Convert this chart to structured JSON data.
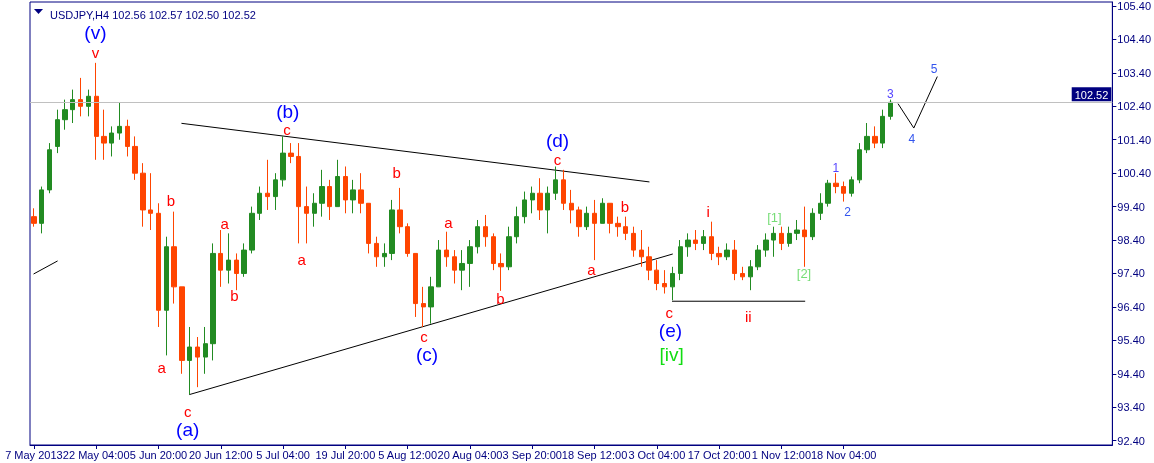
{
  "chart_data": {
    "type": "candlestick",
    "title": "USDJPY,H4 102.56 102.57 102.50 102.52",
    "categories": [
      "7 May 2013",
      null,
      null,
      null,
      null,
      null,
      null,
      null,
      "22 May 04:00",
      null,
      null,
      null,
      null,
      null,
      null,
      null,
      "5 Jun 20:00",
      null,
      null,
      null,
      null,
      null,
      null,
      null,
      "20 Jun 12:00",
      null,
      null,
      null,
      null,
      null,
      null,
      null,
      "5 Jul 04:00",
      null,
      null,
      null,
      null,
      null,
      null,
      null,
      "19 Jul 20:00",
      null,
      null,
      null,
      null,
      null,
      null,
      null,
      "5 Aug 12:00",
      null,
      null,
      null,
      null,
      null,
      null,
      null,
      "20 Aug 04:00",
      null,
      null,
      null,
      null,
      null,
      null,
      null,
      "3 Sep 20:00",
      null,
      null,
      null,
      null,
      null,
      null,
      null,
      "18 Sep 12:00",
      null,
      null,
      null,
      null,
      null,
      null,
      null,
      "3 Oct 04:00",
      null,
      null,
      null,
      null,
      null,
      null,
      null,
      "17 Oct 20:00",
      null,
      null,
      null,
      null,
      null,
      null,
      null,
      "1 Nov 12:00",
      null,
      null,
      null,
      null,
      null,
      null,
      null,
      "18 Nov 04:00",
      null,
      null,
      null,
      null,
      null,
      null,
      null,
      null,
      null,
      null,
      null,
      null,
      null,
      null,
      null,
      null,
      null,
      null,
      null,
      null,
      null,
      null,
      null,
      null,
      null,
      null,
      null,
      null,
      null,
      null,
      null,
      null,
      null,
      null
    ],
    "ylim": [
      92.27,
      105.52
    ],
    "yticks": [
      {
        "value": 92.4,
        "label": "92.40"
      },
      {
        "value": 93.4,
        "label": "93.40"
      },
      {
        "value": 94.4,
        "label": "94.40"
      },
      {
        "value": 95.4,
        "label": "95.40"
      },
      {
        "value": 96.4,
        "label": "96.40"
      },
      {
        "value": 97.4,
        "label": "97.40"
      },
      {
        "value": 98.4,
        "label": "98.40"
      },
      {
        "value": 99.4,
        "label": "99.40"
      },
      {
        "value": 100.4,
        "label": "100.40"
      },
      {
        "value": 101.4,
        "label": "101.40"
      },
      {
        "value": 102.4,
        "label": "102.40"
      },
      {
        "value": 103.4,
        "label": "103.40"
      },
      {
        "value": 104.4,
        "label": "104.40"
      },
      {
        "value": 105.4,
        "label": "105.40"
      }
    ],
    "ref_lines": [
      {
        "axis": "y",
        "value": 102.52,
        "label": "102.52",
        "color": "#c0c0c0"
      }
    ],
    "annotations": [
      "(v)",
      "v",
      "a",
      "b",
      "c",
      "(a)",
      "a",
      "b",
      "(b)",
      "c",
      "a",
      "b",
      "c",
      "(c)",
      "a",
      "b",
      "(d)",
      "c",
      "a",
      "b",
      "c",
      "(e)",
      "[iv]",
      "i",
      "ii",
      "[1]",
      "[2]",
      "1",
      "2",
      "3",
      "4",
      "5"
    ],
    "series": [
      {
        "ohlc": [
          [
            99.1,
            99.35,
            98.8,
            98.9
          ],
          [
            98.9,
            100.0,
            98.6,
            99.9
          ],
          [
            99.9,
            101.3,
            99.8,
            101.1
          ],
          [
            101.2,
            102.3,
            101.0,
            102.0
          ],
          [
            102.0,
            102.6,
            101.7,
            102.3
          ],
          [
            102.3,
            102.9,
            101.9,
            102.6
          ],
          [
            102.6,
            103.25,
            102.1,
            102.4
          ],
          [
            102.4,
            102.9,
            102.1,
            102.7
          ],
          [
            102.7,
            103.7,
            100.8,
            101.5
          ],
          [
            101.5,
            102.3,
            100.8,
            101.3
          ],
          [
            101.3,
            101.8,
            100.9,
            101.6
          ],
          [
            101.6,
            102.5,
            101.4,
            101.8
          ],
          [
            101.8,
            102.0,
            100.9,
            101.2
          ],
          [
            101.2,
            101.5,
            100.2,
            100.4
          ],
          [
            100.4,
            100.7,
            98.8,
            99.3
          ],
          [
            99.3,
            100.4,
            98.7,
            99.2
          ],
          [
            99.2,
            99.5,
            95.8,
            96.3
          ],
          [
            96.3,
            98.5,
            94.95,
            98.2
          ],
          [
            98.2,
            99.25,
            96.5,
            97.0
          ],
          [
            97.0,
            97.0,
            94.4,
            94.8
          ],
          [
            94.8,
            95.8,
            93.78,
            95.2
          ],
          [
            95.2,
            95.5,
            94.0,
            94.9
          ],
          [
            94.9,
            95.8,
            94.4,
            95.3
          ],
          [
            95.3,
            98.3,
            94.8,
            98.0
          ],
          [
            98.0,
            98.7,
            97.0,
            97.5
          ],
          [
            97.5,
            98.6,
            97.1,
            97.8
          ],
          [
            97.8,
            98.0,
            96.9,
            97.4
          ],
          [
            97.4,
            98.3,
            97.3,
            98.1
          ],
          [
            98.1,
            99.4,
            98.0,
            99.2
          ],
          [
            99.2,
            100.0,
            99.0,
            99.8
          ],
          [
            99.8,
            100.8,
            99.3,
            99.7
          ],
          [
            99.7,
            100.4,
            99.3,
            100.2
          ],
          [
            100.2,
            101.5,
            100.0,
            101.0
          ],
          [
            101.0,
            101.3,
            100.7,
            100.9
          ],
          [
            100.9,
            101.3,
            98.3,
            99.4
          ],
          [
            99.4,
            100.0,
            98.3,
            99.2
          ],
          [
            99.2,
            99.8,
            98.8,
            99.5
          ],
          [
            99.5,
            100.5,
            99.1,
            100.0
          ],
          [
            100.0,
            100.2,
            99.0,
            99.4
          ],
          [
            99.4,
            100.8,
            99.4,
            100.3
          ],
          [
            100.3,
            100.6,
            99.2,
            99.6
          ],
          [
            99.6,
            100.2,
            99.2,
            99.9
          ],
          [
            99.9,
            100.4,
            99.2,
            99.5
          ],
          [
            99.5,
            99.5,
            98.0,
            98.3
          ],
          [
            98.3,
            98.5,
            97.6,
            97.9
          ],
          [
            97.9,
            98.3,
            97.6,
            98.0
          ],
          [
            98.0,
            99.6,
            97.8,
            99.3
          ],
          [
            99.3,
            99.96,
            98.6,
            98.8
          ],
          [
            98.8,
            98.9,
            97.9,
            98.0
          ],
          [
            98.0,
            98.0,
            96.1,
            96.5
          ],
          [
            96.5,
            97.0,
            95.8,
            96.4
          ],
          [
            96.4,
            97.3,
            95.9,
            97.0
          ],
          [
            97.0,
            98.4,
            97.0,
            98.1
          ],
          [
            98.1,
            98.65,
            97.6,
            97.9
          ],
          [
            97.9,
            98.1,
            97.1,
            97.5
          ],
          [
            97.5,
            98.1,
            96.9,
            97.7
          ],
          [
            97.7,
            98.4,
            97.0,
            98.2
          ],
          [
            98.2,
            99.0,
            98.0,
            98.8
          ],
          [
            98.8,
            99.15,
            98.2,
            98.5
          ],
          [
            98.5,
            98.6,
            97.5,
            97.7
          ],
          [
            97.7,
            98.0,
            96.88,
            97.6
          ],
          [
            97.6,
            98.8,
            97.5,
            98.5
          ],
          [
            98.5,
            99.4,
            98.3,
            99.1
          ],
          [
            99.1,
            99.85,
            98.9,
            99.6
          ],
          [
            99.6,
            100.0,
            99.2,
            99.8
          ],
          [
            99.8,
            100.25,
            99.0,
            99.3
          ],
          [
            99.3,
            100.0,
            98.6,
            99.8
          ],
          [
            99.8,
            100.6,
            99.6,
            100.2
          ],
          [
            100.2,
            100.5,
            99.3,
            99.5
          ],
          [
            99.5,
            99.9,
            98.9,
            99.3
          ],
          [
            99.3,
            99.4,
            98.5,
            98.8
          ],
          [
            98.8,
            99.4,
            98.7,
            99.2
          ],
          [
            99.2,
            99.6,
            97.8,
            98.9
          ],
          [
            98.9,
            99.65,
            98.9,
            99.5
          ],
          [
            99.5,
            99.5,
            98.6,
            98.9
          ],
          [
            98.9,
            99.1,
            98.5,
            98.8
          ],
          [
            98.8,
            99.1,
            98.4,
            98.6
          ],
          [
            98.6,
            98.8,
            97.9,
            98.1
          ],
          [
            98.1,
            98.7,
            97.6,
            97.9
          ],
          [
            97.9,
            98.2,
            97.2,
            97.5
          ],
          [
            97.5,
            97.8,
            96.9,
            97.1
          ],
          [
            97.1,
            97.5,
            96.8,
            97.0
          ],
          [
            97.0,
            97.6,
            96.6,
            97.4
          ],
          [
            97.4,
            98.4,
            97.2,
            98.2
          ],
          [
            98.2,
            98.6,
            97.9,
            98.4
          ],
          [
            98.4,
            98.7,
            98.1,
            98.3
          ],
          [
            98.3,
            98.7,
            98.1,
            98.5
          ],
          [
            98.5,
            98.95,
            97.8,
            98.0
          ],
          [
            98.0,
            98.2,
            97.65,
            97.9
          ],
          [
            97.9,
            98.3,
            97.8,
            98.1
          ],
          [
            98.1,
            98.4,
            97.2,
            97.4
          ],
          [
            97.4,
            97.6,
            97.2,
            97.3
          ],
          [
            97.3,
            97.8,
            96.9,
            97.6
          ],
          [
            97.6,
            98.25,
            97.5,
            98.1
          ],
          [
            98.1,
            98.6,
            97.9,
            98.4
          ],
          [
            98.4,
            98.8,
            97.9,
            98.6
          ],
          [
            98.6,
            98.8,
            98.1,
            98.3
          ],
          [
            98.3,
            98.8,
            98.2,
            98.6
          ],
          [
            98.6,
            99.0,
            98.4,
            98.7
          ],
          [
            98.7,
            99.4,
            97.6,
            98.5
          ],
          [
            98.5,
            99.35,
            98.4,
            99.2
          ],
          [
            99.2,
            99.8,
            99.0,
            99.5
          ],
          [
            99.5,
            100.2,
            99.4,
            100.1
          ],
          [
            100.1,
            100.4,
            99.8,
            100.0
          ],
          [
            100.0,
            100.15,
            99.55,
            99.8
          ],
          [
            99.8,
            100.3,
            99.7,
            100.2
          ],
          [
            100.2,
            101.3,
            100.1,
            101.1
          ],
          [
            101.1,
            101.9,
            101.0,
            101.5
          ],
          [
            101.5,
            101.8,
            101.15,
            101.3
          ],
          [
            101.3,
            102.3,
            101.15,
            102.1
          ],
          [
            102.1,
            102.6,
            102.0,
            102.52
          ],
          null,
          null,
          null,
          null,
          null,
          null,
          null,
          null,
          null,
          null,
          null,
          null,
          null,
          null,
          null,
          null,
          null,
          null,
          null,
          null,
          null,
          null,
          null,
          null,
          null,
          null,
          null,
          null
        ],
        "colors": [
          "#ff4500",
          "#228b22",
          "#228b22",
          "#228b22",
          "#228b22",
          "#228b22",
          "#ff4500",
          "#228b22",
          "#ff4500",
          "#ff4500",
          "#228b22",
          "#228b22",
          "#ff4500",
          "#ff4500",
          "#ff4500",
          "#ff4500",
          "#ff4500",
          "#228b22",
          "#ff4500",
          "#ff4500",
          "#228b22",
          "#ff4500",
          "#228b22",
          "#228b22",
          "#ff4500",
          "#228b22",
          "#ff4500",
          "#228b22",
          "#228b22",
          "#228b22",
          "#ff4500",
          "#228b22",
          "#228b22",
          "#ff4500",
          "#ff4500",
          "#ff4500",
          "#228b22",
          "#228b22",
          "#ff4500",
          "#228b22",
          "#ff4500",
          "#228b22",
          "#ff4500",
          "#ff4500",
          "#ff4500",
          "#228b22",
          "#228b22",
          "#ff4500",
          "#ff4500",
          "#ff4500",
          "#ff4500",
          "#228b22",
          "#228b22",
          "#ff4500",
          "#ff4500",
          "#228b22",
          "#228b22",
          "#228b22",
          "#ff4500",
          "#ff4500",
          "#ff4500",
          "#228b22",
          "#228b22",
          "#228b22",
          "#228b22",
          "#ff4500",
          "#228b22",
          "#228b22",
          "#ff4500",
          "#ff4500",
          "#ff4500",
          "#228b22",
          "#ff4500",
          "#228b22",
          "#ff4500",
          "#ff4500",
          "#ff4500",
          "#ff4500",
          "#ff4500",
          "#ff4500",
          "#ff4500",
          "#ff4500",
          "#228b22",
          "#228b22",
          "#228b22",
          "#ff4500",
          "#228b22",
          "#ff4500",
          "#ff4500",
          "#228b22",
          "#ff4500",
          "#ff4500",
          "#228b22",
          "#228b22",
          "#228b22",
          "#228b22",
          "#ff4500",
          "#228b22",
          "#228b22",
          "#ff4500",
          "#228b22",
          "#228b22",
          "#228b22",
          "#ff4500",
          "#ff4500",
          "#228b22",
          "#228b22",
          "#228b22",
          "#ff4500",
          "#228b22",
          "#228b22",
          null,
          null,
          null,
          null,
          null,
          null,
          null,
          null,
          null,
          null,
          null,
          null,
          null,
          null,
          null,
          null,
          null,
          null,
          null,
          null,
          null,
          null,
          null,
          null,
          null,
          null,
          null,
          null
        ]
      },
      {
        "type": "line",
        "color": "#000000",
        "values": [
          null,
          null,
          null,
          null,
          null,
          null,
          null,
          null,
          null,
          null,
          null,
          null,
          null,
          null,
          null,
          null,
          null,
          null,
          null,
          101.89,
          null,
          null,
          null,
          null,
          null,
          null,
          null,
          null,
          null,
          null,
          null,
          null,
          null,
          null,
          null,
          null,
          null,
          null,
          null,
          null,
          null,
          null,
          null,
          null,
          null,
          null,
          null,
          null,
          null,
          null,
          null,
          null,
          null,
          null,
          null,
          null,
          null,
          null,
          null,
          null,
          null,
          null,
          null,
          null,
          null,
          null,
          null,
          null,
          null,
          null,
          null,
          null,
          null,
          null,
          null,
          null,
          null,
          null,
          null,
          100.14,
          null,
          null,
          null,
          null,
          null,
          null,
          null,
          null,
          null,
          null,
          null,
          null,
          null,
          null,
          null,
          null,
          null,
          null,
          null,
          null,
          null,
          null,
          null,
          null,
          null,
          null,
          null,
          null,
          null,
          null,
          null,
          null,
          null,
          null,
          null,
          null,
          null,
          null,
          null,
          null,
          null,
          null,
          null,
          null,
          null,
          null,
          null,
          null,
          null,
          null,
          null,
          null,
          null,
          null,
          null,
          null,
          null,
          null,
          null
        ]
      },
      {
        "type": "line",
        "color": "#000000",
        "values": [
          null,
          null,
          null,
          null,
          null,
          null,
          null,
          null,
          null,
          null,
          null,
          null,
          null,
          null,
          null,
          null,
          null,
          null,
          null,
          null,
          93.78,
          null,
          null,
          null,
          null,
          null,
          null,
          null,
          null,
          null,
          null,
          null,
          null,
          null,
          null,
          null,
          null,
          null,
          null,
          null,
          null,
          null,
          null,
          null,
          null,
          null,
          null,
          null,
          null,
          null,
          null,
          null,
          null,
          null,
          null,
          null,
          null,
          null,
          null,
          null,
          null,
          null,
          null,
          null,
          null,
          null,
          null,
          null,
          null,
          null,
          null,
          null,
          null,
          null,
          null,
          null,
          null,
          null,
          null,
          null,
          null,
          null,
          97.98,
          null,
          null,
          null,
          null,
          null,
          null,
          null,
          null,
          null,
          null,
          null,
          null,
          null,
          null,
          null,
          null,
          null,
          null,
          null,
          null,
          null,
          null,
          null,
          null,
          null,
          null,
          null,
          null,
          null,
          null,
          null,
          null,
          null,
          null,
          null,
          null,
          null,
          null,
          null,
          null,
          null,
          null,
          null,
          null,
          null,
          null,
          null,
          null,
          null,
          null,
          null,
          null,
          null,
          null,
          null,
          null
        ]
      },
      {
        "type": "line",
        "color": "#000000",
        "values": [
          97.39,
          null,
          null,
          97.77,
          null,
          null,
          null,
          null,
          null,
          null,
          null,
          null,
          null,
          null,
          null,
          null,
          null,
          null,
          null,
          null,
          null,
          null,
          null,
          null,
          null,
          null,
          null,
          null,
          null,
          null,
          null,
          null,
          null,
          null,
          null,
          null,
          null,
          null,
          null,
          null,
          null,
          null,
          null,
          null,
          null,
          null,
          null,
          null,
          null,
          null,
          null,
          null,
          null,
          null,
          null,
          null,
          null,
          null,
          null,
          null,
          null,
          null,
          null,
          null,
          null,
          null,
          null,
          null,
          null,
          null,
          null,
          null,
          null,
          null,
          null,
          null,
          null,
          null,
          null,
          null,
          null,
          null,
          null,
          null,
          null,
          null,
          null,
          null,
          null,
          null,
          null,
          null,
          null,
          null,
          null,
          null,
          null,
          null,
          null,
          null,
          null,
          null,
          null,
          null,
          null,
          null,
          null,
          null,
          null,
          null,
          null,
          null,
          null,
          null,
          null,
          null,
          null,
          null,
          null,
          null,
          null,
          null,
          null,
          null,
          null,
          null,
          null,
          null,
          null,
          null,
          null,
          null,
          null,
          null,
          null,
          null,
          null,
          null,
          null
        ]
      },
      {
        "type": "line",
        "color": "#000000",
        "values": [
          null,
          null,
          null,
          null,
          null,
          null,
          null,
          null,
          null,
          null,
          null,
          null,
          null,
          null,
          null,
          null,
          null,
          null,
          null,
          null,
          null,
          null,
          null,
          null,
          null,
          null,
          null,
          null,
          null,
          null,
          null,
          null,
          null,
          null,
          null,
          null,
          null,
          null,
          null,
          null,
          null,
          null,
          null,
          null,
          null,
          null,
          null,
          null,
          null,
          null,
          null,
          null,
          null,
          null,
          null,
          null,
          null,
          null,
          null,
          null,
          null,
          null,
          null,
          null,
          null,
          null,
          null,
          null,
          null,
          null,
          null,
          null,
          null,
          null,
          null,
          null,
          null,
          null,
          null,
          null,
          null,
          null,
          96.57,
          null,
          null,
          null,
          null,
          null,
          null,
          null,
          null,
          null,
          null,
          null,
          null,
          null,
          null,
          null,
          null,
          96.57,
          null,
          null,
          null,
          null,
          null,
          null,
          null,
          null,
          null,
          null,
          null,
          null,
          null,
          null,
          null,
          null,
          null,
          null,
          null,
          null,
          null,
          null,
          null,
          null,
          null,
          null,
          null,
          null,
          null,
          null,
          null,
          null,
          null,
          null,
          null,
          null,
          null,
          null,
          null
        ]
      },
      {
        "type": "line",
        "color": "#000000",
        "values": [
          null,
          null,
          null,
          null,
          null,
          null,
          null,
          null,
          null,
          null,
          null,
          null,
          null,
          null,
          null,
          null,
          null,
          null,
          null,
          null,
          null,
          null,
          null,
          null,
          null,
          null,
          null,
          null,
          null,
          null,
          null,
          null,
          null,
          null,
          null,
          null,
          null,
          null,
          null,
          null,
          null,
          null,
          null,
          null,
          null,
          null,
          null,
          null,
          null,
          null,
          null,
          null,
          null,
          null,
          null,
          null,
          null,
          null,
          null,
          null,
          null,
          null,
          null,
          null,
          null,
          null,
          null,
          null,
          null,
          null,
          null,
          null,
          null,
          null,
          null,
          null,
          null,
          null,
          null,
          null,
          null,
          null,
          null,
          null,
          null,
          null,
          null,
          null,
          null,
          null,
          null,
          null,
          null,
          null,
          null,
          null,
          null,
          null,
          null,
          null,
          null,
          null,
          null,
          null,
          null,
          null,
          null,
          null,
          null,
          null,
          null,
          102.47,
          null,
          101.75,
          null,
          null,
          103.28,
          null,
          null,
          null,
          null,
          null,
          null,
          null,
          null,
          null,
          null,
          null,
          null,
          null,
          null,
          null,
          null,
          null,
          null,
          null,
          null,
          null,
          null
        ]
      }
    ]
  }
}
